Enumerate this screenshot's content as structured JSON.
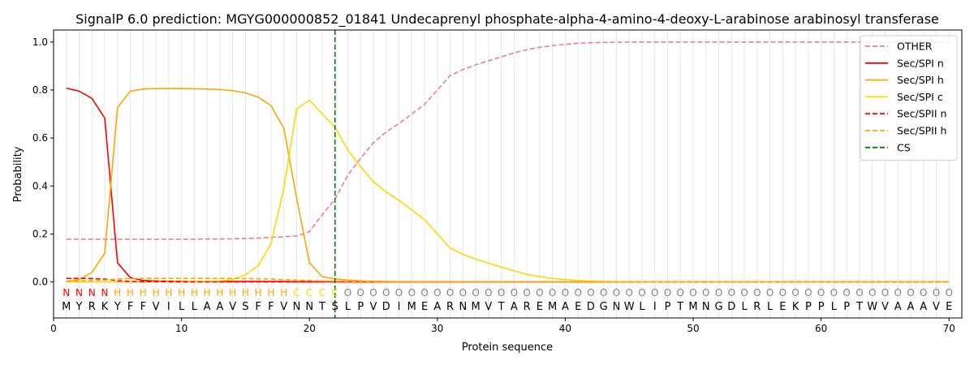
{
  "chart_data": {
    "type": "line",
    "title": "SignalP 6.0 prediction: MGYG000000852_01841 Undecaprenyl phosphate-alpha-4-amino-4-deoxy-L-arabinose arabinosyl transferase",
    "xlabel": "Protein sequence",
    "ylabel": "Probability",
    "xlim": [
      0,
      71
    ],
    "ylim": [
      -0.15,
      1.05
    ],
    "x_ticks": [
      0,
      10,
      20,
      30,
      40,
      50,
      60,
      70
    ],
    "y_ticks": [
      0.0,
      0.2,
      0.4,
      0.6,
      0.8,
      1.0
    ],
    "y_tick_labels": [
      "0.0",
      "0.2",
      "0.4",
      "0.6",
      "0.8",
      "1.0"
    ],
    "grid": "vertical lines at each residue",
    "legend_position": "top-right",
    "sequence": [
      "M",
      "Y",
      "R",
      "K",
      "Y",
      "F",
      "F",
      "V",
      "I",
      "L",
      "L",
      "A",
      "A",
      "V",
      "S",
      "F",
      "F",
      "V",
      "N",
      "N",
      "T",
      "S",
      "L",
      "P",
      "V",
      "D",
      "I",
      "M",
      "E",
      "A",
      "R",
      "N",
      "M",
      "V",
      "T",
      "A",
      "R",
      "E",
      "M",
      "A",
      "E",
      "D",
      "G",
      "N",
      "W",
      "L",
      "I",
      "P",
      "T",
      "M",
      "N",
      "G",
      "D",
      "L",
      "R",
      "L",
      "E",
      "K",
      "P",
      "P",
      "L",
      "P",
      "T",
      "W",
      "V",
      "A",
      "A",
      "A",
      "V",
      "E"
    ],
    "region_labels": [
      "N",
      "N",
      "N",
      "N",
      "H",
      "H",
      "H",
      "H",
      "H",
      "H",
      "H",
      "H",
      "H",
      "H",
      "H",
      "H",
      "H",
      "H",
      "C",
      "C",
      "C",
      "C",
      "O",
      "O",
      "O",
      "O",
      "O",
      "O",
      "O",
      "O",
      "O",
      "O",
      "O",
      "O",
      "O",
      "O",
      "O",
      "O",
      "O",
      "O",
      "O",
      "O",
      "O",
      "O",
      "O",
      "O",
      "O",
      "O",
      "O",
      "O",
      "O",
      "O",
      "O",
      "O",
      "O",
      "O",
      "O",
      "O",
      "O",
      "O",
      "O",
      "O",
      "O",
      "O",
      "O",
      "O",
      "O",
      "O",
      "O",
      "O"
    ],
    "region_colors": {
      "N": "#ff0000",
      "H": "#ffa500",
      "C": "#ffd700",
      "O": "#808080"
    },
    "cleavage_site": 22,
    "series": [
      {
        "name": "OTHER",
        "color": "#f08080",
        "dash": "dashed",
        "values": [
          0.178,
          0.178,
          0.178,
          0.178,
          0.178,
          0.178,
          0.178,
          0.178,
          0.178,
          0.178,
          0.178,
          0.179,
          0.179,
          0.18,
          0.181,
          0.183,
          0.186,
          0.188,
          0.192,
          0.21,
          0.28,
          0.345,
          0.445,
          0.515,
          0.58,
          0.625,
          0.66,
          0.7,
          0.74,
          0.8,
          0.86,
          0.885,
          0.905,
          0.922,
          0.938,
          0.955,
          0.968,
          0.978,
          0.985,
          0.99,
          0.995,
          0.997,
          0.998,
          0.999,
          1.0,
          1.0,
          1.0,
          1.0,
          1.0,
          1.0,
          1.0,
          1.0,
          1.0,
          1.0,
          1.0,
          1.0,
          1.0,
          1.0,
          1.0,
          1.0,
          1.0,
          1.0,
          1.0,
          1.0,
          1.0,
          1.0,
          1.0,
          1.0,
          1.0,
          1.0
        ]
      },
      {
        "name": "Sec/SPI n",
        "color": "#ff0000",
        "dash": "solid",
        "values": [
          0.808,
          0.795,
          0.765,
          0.683,
          0.08,
          0.018,
          0.006,
          0.004,
          0.003,
          0.003,
          0.002,
          0.002,
          0.002,
          0.002,
          0.002,
          0.002,
          0.002,
          0.002,
          0.001,
          0.001,
          0.001,
          0.001,
          0.001,
          0.0,
          0.0,
          0.0,
          0.0,
          0.0,
          0.0,
          0.0,
          0.0,
          0.0,
          0.0,
          0.0,
          0.0,
          0.0,
          0.0,
          0.0,
          0.0,
          0.0,
          0.0,
          0.0,
          0.0,
          0.0,
          0.0,
          0.0,
          0.0,
          0.0,
          0.0,
          0.0,
          0.0,
          0.0,
          0.0,
          0.0,
          0.0,
          0.0,
          0.0,
          0.0,
          0.0,
          0.0,
          0.0,
          0.0,
          0.0,
          0.0,
          0.0,
          0.0,
          0.0,
          0.0,
          0.0,
          0.0
        ]
      },
      {
        "name": "Sec/SPI h",
        "color": "#ffa500",
        "dash": "solid",
        "values": [
          0.003,
          0.01,
          0.04,
          0.12,
          0.727,
          0.795,
          0.804,
          0.806,
          0.806,
          0.806,
          0.805,
          0.804,
          0.802,
          0.797,
          0.788,
          0.77,
          0.735,
          0.64,
          0.35,
          0.08,
          0.022,
          0.013,
          0.008,
          0.005,
          0.003,
          0.002,
          0.001,
          0.001,
          0.001,
          0.001,
          0.001,
          0.0,
          0.0,
          0.0,
          0.0,
          0.0,
          0.0,
          0.0,
          0.0,
          0.0,
          0.0,
          0.0,
          0.0,
          0.0,
          0.0,
          0.0,
          0.0,
          0.0,
          0.0,
          0.0,
          0.0,
          0.0,
          0.0,
          0.0,
          0.0,
          0.0,
          0.0,
          0.0,
          0.0,
          0.0,
          0.0,
          0.0,
          0.0,
          0.0,
          0.0,
          0.0,
          0.0,
          0.0,
          0.0,
          0.0
        ]
      },
      {
        "name": "Sec/SPI c",
        "color": "#ffd700",
        "dash": "solid",
        "values": [
          0.0,
          0.0,
          0.0,
          0.0,
          0.0,
          0.0,
          0.0,
          0.001,
          0.001,
          0.001,
          0.002,
          0.003,
          0.005,
          0.01,
          0.03,
          0.068,
          0.16,
          0.39,
          0.72,
          0.758,
          0.7,
          0.645,
          0.55,
          0.48,
          0.418,
          0.375,
          0.34,
          0.3,
          0.26,
          0.2,
          0.142,
          0.115,
          0.095,
          0.078,
          0.062,
          0.046,
          0.032,
          0.022,
          0.015,
          0.01,
          0.006,
          0.004,
          0.002,
          0.001,
          0.001,
          0.0,
          0.0,
          0.0,
          0.0,
          0.0,
          0.0,
          0.0,
          0.0,
          0.0,
          0.0,
          0.0,
          0.0,
          0.0,
          0.0,
          0.0,
          0.0,
          0.0,
          0.0,
          0.0,
          0.0,
          0.0,
          0.0,
          0.0,
          0.0,
          0.0
        ]
      },
      {
        "name": "Sec/SPII n",
        "color": "#ff0000",
        "dash": "dashed",
        "values": [
          0.015,
          0.015,
          0.014,
          0.012,
          0.005,
          0.002,
          0.001,
          0.001,
          0.001,
          0.0,
          0.0,
          0.0,
          0.0,
          0.0,
          0.0,
          0.0,
          0.0,
          0.0,
          0.0,
          0.0,
          0.0,
          0.0,
          0.0,
          0.0,
          0.0,
          0.0,
          0.0,
          0.0,
          0.0,
          0.0,
          0.0,
          0.0,
          0.0,
          0.0,
          0.0,
          0.0,
          0.0,
          0.0,
          0.0,
          0.0,
          0.0,
          0.0,
          0.0,
          0.0,
          0.0,
          0.0,
          0.0,
          0.0,
          0.0,
          0.0,
          0.0,
          0.0,
          0.0,
          0.0,
          0.0,
          0.0,
          0.0,
          0.0,
          0.0,
          0.0,
          0.0,
          0.0,
          0.0,
          0.0,
          0.0,
          0.0,
          0.0,
          0.0,
          0.0,
          0.0
        ]
      },
      {
        "name": "Sec/SPII h",
        "color": "#ffa500",
        "dash": "dashed",
        "values": [
          0.003,
          0.004,
          0.006,
          0.008,
          0.012,
          0.014,
          0.015,
          0.015,
          0.015,
          0.015,
          0.015,
          0.015,
          0.015,
          0.015,
          0.014,
          0.013,
          0.012,
          0.01,
          0.008,
          0.006,
          0.004,
          0.003,
          0.002,
          0.001,
          0.001,
          0.0,
          0.0,
          0.0,
          0.0,
          0.0,
          0.0,
          0.0,
          0.0,
          0.0,
          0.0,
          0.0,
          0.0,
          0.0,
          0.0,
          0.0,
          0.0,
          0.0,
          0.0,
          0.0,
          0.0,
          0.0,
          0.0,
          0.0,
          0.0,
          0.0,
          0.0,
          0.0,
          0.0,
          0.0,
          0.0,
          0.0,
          0.0,
          0.0,
          0.0,
          0.0,
          0.0,
          0.0,
          0.0,
          0.0,
          0.0,
          0.0,
          0.0,
          0.0,
          0.0,
          0.0
        ]
      }
    ],
    "legend": [
      {
        "label": "OTHER",
        "color": "#f08080",
        "dash": "dashed"
      },
      {
        "label": "Sec/SPI n",
        "color": "#ff0000",
        "dash": "solid"
      },
      {
        "label": "Sec/SPI h",
        "color": "#ffa500",
        "dash": "solid"
      },
      {
        "label": "Sec/SPI c",
        "color": "#ffd700",
        "dash": "solid"
      },
      {
        "label": "Sec/SPII n",
        "color": "#ff0000",
        "dash": "dashed"
      },
      {
        "label": "Sec/SPII h",
        "color": "#ffa500",
        "dash": "dashed"
      },
      {
        "label": "CS",
        "color": "#008000",
        "dash": "dashed"
      }
    ]
  }
}
